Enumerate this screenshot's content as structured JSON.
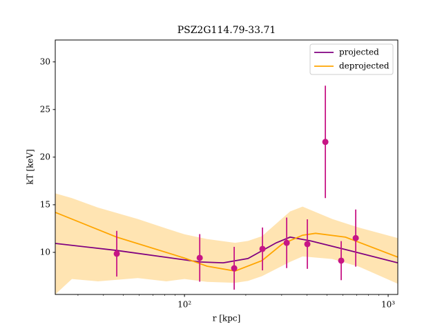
{
  "chart_data": {
    "type": "scatter",
    "title": "PSZ2G114.79-33.71",
    "x_label": "r [kpc]",
    "y_label": "kT [keV]",
    "xscale": "log",
    "xlim": [
      23.2,
      1115
    ],
    "ylim": [
      5.58,
      32.3
    ],
    "xticks": [
      {
        "value": 100,
        "label": "10²"
      },
      {
        "value": 1000,
        "label": "10³"
      }
    ],
    "xminorticks": [
      30,
      40,
      50,
      60,
      70,
      80,
      90,
      200,
      300,
      400,
      500,
      600,
      700,
      800,
      900
    ],
    "yticks": [
      10,
      15,
      20,
      25,
      30
    ],
    "legend": "upper right",
    "points": {
      "color": "#c71585",
      "x": [
        46.5,
        118.8,
        175.4,
        241.5,
        317.5,
        401,
        491.6,
        588,
        693
      ],
      "values": [
        9.86,
        9.42,
        8.33,
        10.36,
        11.0,
        10.87,
        21.6,
        9.13,
        11.5
      ],
      "errors": [
        2.4,
        2.5,
        2.25,
        2.25,
        2.65,
        2.6,
        5.9,
        2.05,
        3.0
      ]
    },
    "series": [
      {
        "name": "projected",
        "color": "#800080",
        "x": [
          23.2,
          46.5,
          119,
          155,
          205,
          282,
          330,
          417,
          617,
          1115
        ],
        "values": [
          10.94,
          10.2,
          8.99,
          8.9,
          9.35,
          11.0,
          11.6,
          11.2,
          10.3,
          8.9
        ]
      },
      {
        "name": "deprojected",
        "color": "#ffa500",
        "x": [
          23.2,
          46.5,
          100,
          129,
          177,
          240,
          302,
          380,
          440,
          617,
          1115
        ],
        "values": [
          14.2,
          11.6,
          9.4,
          8.55,
          8.04,
          9.13,
          10.87,
          11.8,
          12.0,
          11.6,
          9.5
        ]
      }
    ],
    "band": {
      "color": "#ffa500",
      "x": [
        23.2,
        28,
        37.6,
        59,
        81.5,
        100,
        129,
        177,
        205,
        240,
        330,
        380,
        532,
        718,
        1115
      ],
      "upper": [
        16.2,
        15.7,
        14.7,
        13.5,
        12.5,
        11.9,
        11.4,
        11.0,
        11.2,
        11.7,
        14.3,
        14.8,
        13.5,
        12.6,
        11.5
      ],
      "lower": [
        5.58,
        7.2,
        6.96,
        7.3,
        6.96,
        7.2,
        6.9,
        6.8,
        7.0,
        7.5,
        9.0,
        9.57,
        9.3,
        8.5,
        6.7
      ]
    }
  }
}
